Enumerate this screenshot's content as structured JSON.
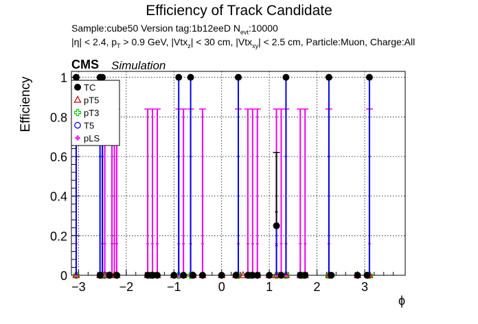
{
  "chart_data": {
    "type": "scatter",
    "title": "Efficiency of Track Candidate",
    "subtitle_line1": "Sample:cube50   Version tag:1b12eeD  N_evt:10000",
    "subtitle_line2": "|η| < 2.4, p_T > 0.9 GeV, |Vtx_z| < 30 cm, |Vtx_xy| < 2.5 cm, Particle:Muon, Charge:All",
    "experiment_label": "CMS",
    "experiment_sublabel": "Simulation",
    "xlabel": "ϕ",
    "ylabel": "Efficiency",
    "xlim": [
      -3.15,
      3.85
    ],
    "ylim": [
      0,
      1.03
    ],
    "x_ticks": [
      "−3",
      "−2",
      "−1",
      "0",
      "1",
      "2",
      "3"
    ],
    "x_tick_values": [
      -3,
      -2,
      -1,
      0,
      1,
      2,
      3
    ],
    "y_ticks": [
      "0",
      "0.2",
      "0.4",
      "0.6",
      "0.8",
      "1"
    ],
    "y_tick_values": [
      0,
      0.2,
      0.4,
      0.6,
      0.8,
      1
    ],
    "grid": true,
    "legend_position": "top-left",
    "series": [
      {
        "name": "TC",
        "color": "#000000",
        "marker": "filled-circle",
        "points": [
          {
            "x": -3.05,
            "y": 1.0,
            "err_low": 1.0
          },
          {
            "x": -2.55,
            "y": 1.0,
            "err_low": 1.0
          },
          {
            "x": -2.5,
            "y": 1.0,
            "err_low": 1.0
          },
          {
            "x": -0.9,
            "y": 1.0,
            "err_low": 1.0
          },
          {
            "x": -0.65,
            "y": 1.0,
            "err_low": 1.0
          },
          {
            "x": 0.35,
            "y": 1.0,
            "err_low": 1.0
          },
          {
            "x": 1.15,
            "y": 0.25,
            "err_low": 0.25,
            "err_high": 0.37
          },
          {
            "x": 1.35,
            "y": 1.0,
            "err_low": 1.0
          },
          {
            "x": 2.25,
            "y": 1.0,
            "err_low": 1.0
          },
          {
            "x": 3.1,
            "y": 1.0,
            "err_low": 1.0
          },
          {
            "x": -2.55,
            "y": 0.0
          },
          {
            "x": -2.35,
            "y": 0.0
          },
          {
            "x": -2.2,
            "y": 0.0
          },
          {
            "x": -1.55,
            "y": 0.0
          },
          {
            "x": -1.45,
            "y": 0.0
          },
          {
            "x": -1.35,
            "y": 0.0
          },
          {
            "x": -1.0,
            "y": 0.0
          },
          {
            "x": -0.8,
            "y": 0.0
          },
          {
            "x": -0.6,
            "y": 0.0
          },
          {
            "x": -0.4,
            "y": 0.0
          },
          {
            "x": 0.0,
            "y": 0.0
          },
          {
            "x": 0.3,
            "y": 0.0
          },
          {
            "x": 0.55,
            "y": 0.0
          },
          {
            "x": 0.65,
            "y": 0.0
          },
          {
            "x": 0.75,
            "y": 0.0
          },
          {
            "x": 1.0,
            "y": 0.0
          },
          {
            "x": 1.25,
            "y": 0.0
          },
          {
            "x": 1.65,
            "y": 0.0
          },
          {
            "x": 1.75,
            "y": 0.0
          },
          {
            "x": 2.3,
            "y": 0.0
          },
          {
            "x": 2.85,
            "y": 0.0
          },
          {
            "x": 3.05,
            "y": 0.0
          }
        ]
      },
      {
        "name": "pT5",
        "color": "#cc0000",
        "marker": "open-triangle",
        "points": [
          {
            "x": -3.05,
            "y": 0.0
          },
          {
            "x": -2.55,
            "y": 0.0
          },
          {
            "x": -2.45,
            "y": 0.0
          },
          {
            "x": -2.35,
            "y": 0.0
          },
          {
            "x": -2.25,
            "y": 0.0
          },
          {
            "x": -2.2,
            "y": 0.0
          },
          {
            "x": -1.55,
            "y": 0.0
          },
          {
            "x": -1.45,
            "y": 0.0
          },
          {
            "x": -1.35,
            "y": 0.0
          },
          {
            "x": -1.0,
            "y": 0.0
          },
          {
            "x": -0.8,
            "y": 0.0
          },
          {
            "x": -0.6,
            "y": 0.0
          },
          {
            "x": -0.4,
            "y": 0.0
          },
          {
            "x": 0.0,
            "y": 0.0
          },
          {
            "x": 0.3,
            "y": 0.0
          },
          {
            "x": 0.45,
            "y": 0.0
          },
          {
            "x": 0.55,
            "y": 0.0
          },
          {
            "x": 0.65,
            "y": 0.0
          },
          {
            "x": 0.75,
            "y": 0.0
          },
          {
            "x": 1.0,
            "y": 0.0
          },
          {
            "x": 1.15,
            "y": 0.0
          },
          {
            "x": 1.25,
            "y": 0.0
          },
          {
            "x": 1.35,
            "y": 0.0
          },
          {
            "x": 1.65,
            "y": 0.0
          },
          {
            "x": 1.75,
            "y": 0.0
          },
          {
            "x": 2.25,
            "y": 0.0
          },
          {
            "x": 2.85,
            "y": 0.0
          },
          {
            "x": 3.1,
            "y": 0.0
          }
        ]
      },
      {
        "name": "pT3",
        "color": "#00cc00",
        "marker": "open-cross",
        "points": [
          {
            "x": -3.05,
            "y": 0.0
          },
          {
            "x": -2.5,
            "y": 0.0
          },
          {
            "x": -2.35,
            "y": 0.0
          },
          {
            "x": -2.2,
            "y": 0.0
          },
          {
            "x": -1.45,
            "y": 0.0
          },
          {
            "x": -0.9,
            "y": 0.0
          },
          {
            "x": -0.65,
            "y": 0.0
          },
          {
            "x": 0.35,
            "y": 0.0
          },
          {
            "x": 0.6,
            "y": 0.0
          },
          {
            "x": 1.15,
            "y": 0.0
          },
          {
            "x": 1.35,
            "y": 0.0
          },
          {
            "x": 1.7,
            "y": 0.0
          },
          {
            "x": 2.25,
            "y": 0.0
          },
          {
            "x": 3.1,
            "y": 0.0
          }
        ]
      },
      {
        "name": "T5",
        "color": "#0000ee",
        "marker": "open-circle",
        "points": [
          {
            "x": -2.55,
            "y": 0.0
          },
          {
            "x": -2.45,
            "y": 0.0
          },
          {
            "x": -2.2,
            "y": 0.0
          },
          {
            "x": -1.5,
            "y": 0.0
          },
          {
            "x": -1.35,
            "y": 0.0
          },
          {
            "x": -1.0,
            "y": 0.0
          },
          {
            "x": -0.8,
            "y": 0.0
          },
          {
            "x": -0.4,
            "y": 0.0
          },
          {
            "x": 0.0,
            "y": 0.0
          },
          {
            "x": 0.55,
            "y": 0.0
          },
          {
            "x": 0.75,
            "y": 0.0
          },
          {
            "x": 1.0,
            "y": 0.0
          },
          {
            "x": 1.65,
            "y": 0.0
          },
          {
            "x": 2.85,
            "y": 0.0
          }
        ]
      },
      {
        "name": "pLS",
        "color": "#ee00ee",
        "marker": "open-star",
        "points": [
          {
            "x": -3.05,
            "y": 0.0,
            "err_high": 0.84
          },
          {
            "x": -2.5,
            "y": 0.0,
            "err_high": 0.84
          },
          {
            "x": -2.45,
            "y": 0.0,
            "err_high": 0.84
          },
          {
            "x": -2.3,
            "y": 0.0,
            "err_high": 0.84
          },
          {
            "x": -2.25,
            "y": 0.0,
            "err_high": 0.84
          },
          {
            "x": -2.2,
            "y": 0.0,
            "err_high": 0.84
          },
          {
            "x": -1.55,
            "y": 0.0,
            "err_high": 0.84
          },
          {
            "x": -1.45,
            "y": 0.0,
            "err_high": 0.84
          },
          {
            "x": -1.35,
            "y": 0.0,
            "err_high": 0.84
          },
          {
            "x": -0.9,
            "y": 0.0,
            "err_high": 0.84
          },
          {
            "x": -0.8,
            "y": 0.0,
            "err_high": 0.84
          },
          {
            "x": -0.65,
            "y": 0.0,
            "err_high": 0.84
          },
          {
            "x": -0.4,
            "y": 0.0,
            "err_high": 0.84
          },
          {
            "x": 0.35,
            "y": 0.0,
            "err_high": 0.84
          },
          {
            "x": 0.55,
            "y": 0.0,
            "err_high": 0.84
          },
          {
            "x": 0.65,
            "y": 0.0,
            "err_high": 0.84
          },
          {
            "x": 0.75,
            "y": 0.0,
            "err_high": 0.84
          },
          {
            "x": 1.15,
            "y": 0.0,
            "err_high": 0.84
          },
          {
            "x": 1.25,
            "y": 0.0,
            "err_high": 0.84
          },
          {
            "x": 1.35,
            "y": 0.0,
            "err_high": 0.84
          },
          {
            "x": 1.65,
            "y": 0.0,
            "err_high": 0.84
          },
          {
            "x": 1.75,
            "y": 0.0,
            "err_high": 0.84
          },
          {
            "x": 2.25,
            "y": 0.0,
            "err_high": 0.84
          },
          {
            "x": 3.1,
            "y": 0.0,
            "err_high": 0.84
          }
        ]
      }
    ]
  },
  "text": {
    "title": "Efficiency of Track Candidate",
    "sub1_prefix": "Sample:cube50   Version tag:1b12eeD  N",
    "sub1_sub": "evt",
    "sub1_suffix": ":10000",
    "sub2_a": "|η| < 2.4, p",
    "sub2_a_sub": "T",
    "sub2_b": " > 0.9 GeV, |Vtx",
    "sub2_b_sub": "z",
    "sub2_c": "| < 30 cm, |Vtx",
    "sub2_c_sub": "xy",
    "sub2_d": "| < 2.5 cm, Particle:Muon, Charge:All",
    "cms": "CMS",
    "simulation": "Simulation",
    "ylabel": "Efficiency",
    "xlabel": "ϕ"
  }
}
